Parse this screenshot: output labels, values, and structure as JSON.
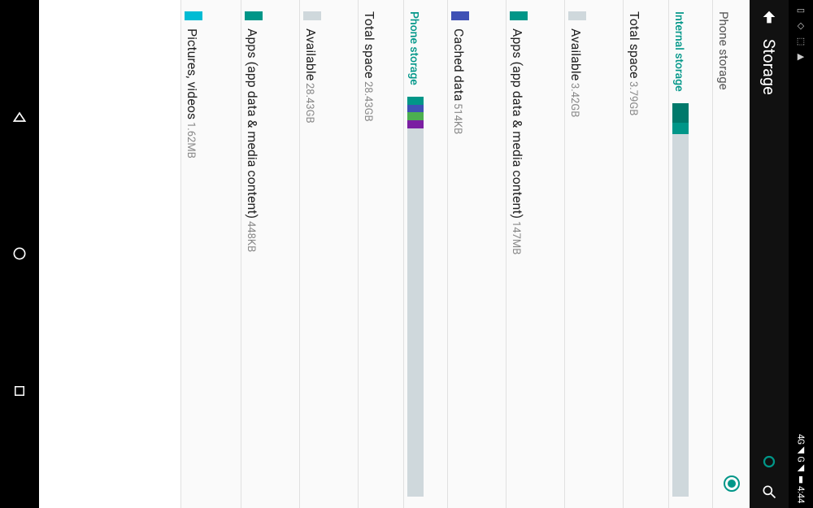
{
  "status_bar": {
    "clock": "4:44",
    "signal_text": "4G◢ G◢ ▮",
    "icons": [
      "▭",
      "⬚",
      "⬚",
      "▶"
    ]
  },
  "app_bar": {
    "title": "Storage"
  },
  "colors": {
    "teal": "#009688",
    "teal_dark": "#00796b",
    "grey": "#cfd8dc",
    "indigo": "#3f51b5",
    "green": "#4caf50",
    "purple": "#7b1fa2",
    "bar_bg": "#cfd8dc"
  },
  "header": {
    "label": "Phone storage"
  },
  "internal": {
    "title": "Internal storage",
    "bar": {
      "segments": [
        {
          "color": "#00796b",
          "pct": 5
        },
        {
          "color": "#009688",
          "pct": 3
        },
        {
          "color": "#cfd8dc",
          "pct": 92
        }
      ]
    },
    "total": {
      "label": "Total space",
      "value": "3.79GB"
    },
    "available": {
      "label": "Available",
      "value": "3.42GB",
      "swatch": "#cfd8dc"
    },
    "apps": {
      "label": "Apps (app data & media content)",
      "value": "147MB",
      "swatch": "#009688"
    },
    "cached": {
      "label": "Cached data",
      "value": "514KB",
      "swatch": "#3f51b5"
    }
  },
  "phone": {
    "title": "Phone storage",
    "bar": {
      "segments": [
        {
          "color": "#009688",
          "pct": 2
        },
        {
          "color": "#3f51b5",
          "pct": 2
        },
        {
          "color": "#4caf50",
          "pct": 2
        },
        {
          "color": "#7b1fa2",
          "pct": 2
        },
        {
          "color": "#cfd8dc",
          "pct": 92
        }
      ]
    },
    "total": {
      "label": "Total space",
      "value": "28.43GB"
    },
    "available": {
      "label": "Available",
      "value": "28.43GB",
      "swatch": "#cfd8dc"
    },
    "apps": {
      "label": "Apps (app data & media content)",
      "value": "448KB",
      "swatch": "#009688"
    },
    "pictures": {
      "label": "Pictures, videos",
      "value": "1.62MB",
      "swatch": "#00bcd4"
    }
  }
}
